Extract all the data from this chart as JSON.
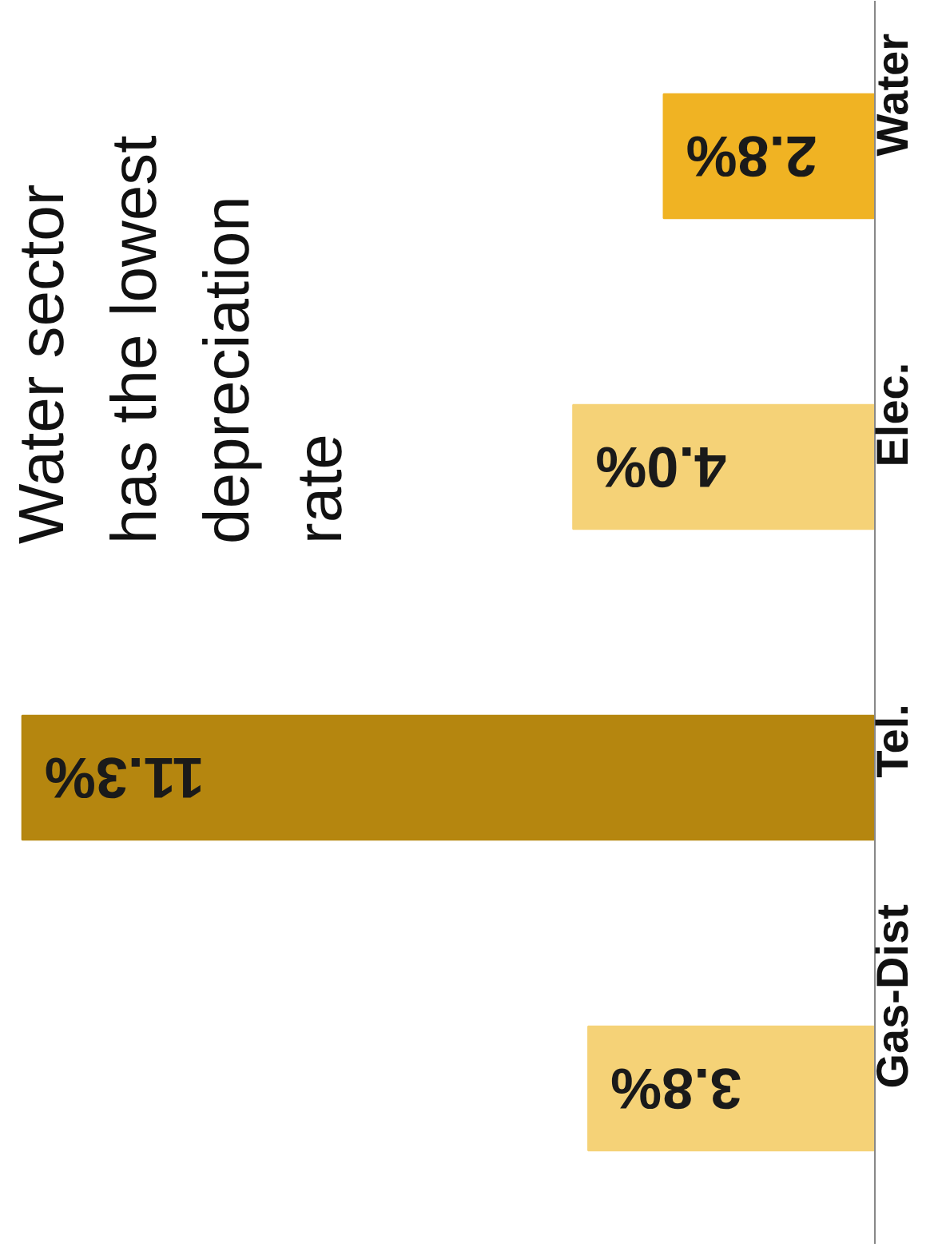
{
  "chart_data": {
    "type": "bar",
    "orientation": "horizontal",
    "title": "Water sector has the lowest depreciation rate",
    "categories": [
      "Water",
      "Elec.",
      "Tel.",
      "Gas-Dist"
    ],
    "values": [
      2.8,
      4.0,
      11.3,
      3.8
    ],
    "value_labels": [
      "2.8%",
      "4.0%",
      "11.3%",
      "3.8%"
    ],
    "colors": [
      "#f0b323",
      "#f5d277",
      "#b5860f",
      "#f5d277"
    ],
    "grid": false
  }
}
